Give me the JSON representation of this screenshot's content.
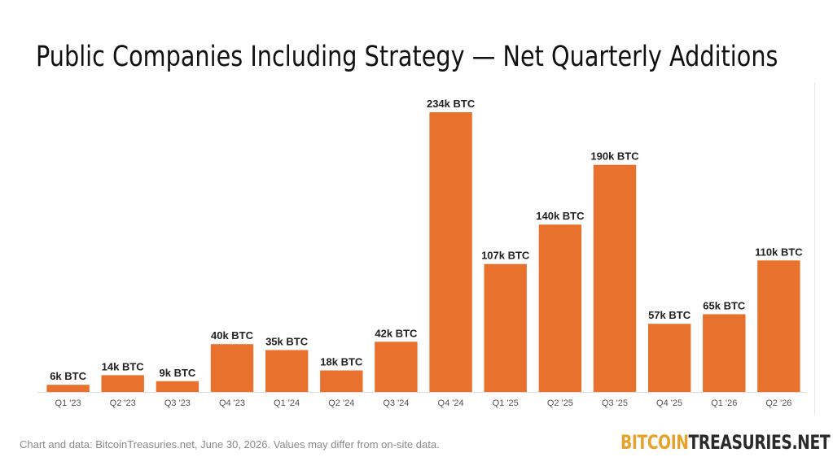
{
  "chart_data": {
    "type": "bar",
    "title": "Public Companies Including Strategy — Net Quarterly Additions",
    "xlabel": "",
    "ylabel": "",
    "categories": [
      "Q1 '23",
      "Q2 '23",
      "Q3 '23",
      "Q4 '23",
      "Q1 '24",
      "Q2 '24",
      "Q3 '24",
      "Q4 '24",
      "Q1 '25",
      "Q2 '25",
      "Q3 '25",
      "Q4 '25",
      "Q1 '26",
      "Q2 '26"
    ],
    "values": [
      6,
      14,
      9,
      40,
      35,
      18,
      42,
      234,
      107,
      140,
      190,
      57,
      65,
      110
    ],
    "data_labels": [
      "6k BTC",
      "14k BTC",
      "9k BTC",
      "40k BTC",
      "35k BTC",
      "18k BTC",
      "42k BTC",
      "234k BTC",
      "107k BTC",
      "140k BTC",
      "190k BTC",
      "57k BTC",
      "65k BTC",
      "110k BTC"
    ],
    "unit": "k BTC",
    "ylim": [
      0,
      240
    ],
    "grid": false,
    "legend": "none",
    "bar_color": "#e8712e"
  },
  "footer": {
    "note": "Chart and data: BitcoinTreasuries.net, June 30, 2026. Values may differ from on-site data.",
    "logo_part1": "BITCOIN",
    "logo_part2": "TREASURIES.NET"
  },
  "colors": {
    "bar": "#e8712e",
    "logo_accent": "#e8a12a",
    "logo_dark": "#2a2a2a",
    "label_text": "#222222",
    "tick_text": "#555555"
  }
}
